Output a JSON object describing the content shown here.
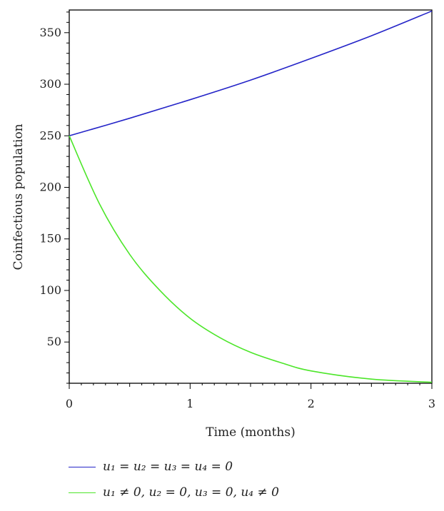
{
  "chart_data": {
    "type": "line",
    "title": "",
    "xlabel": "Time (months)",
    "ylabel": "Coinfectious population",
    "xlim": [
      0,
      3
    ],
    "ylim": [
      10,
      372
    ],
    "x_ticks": [
      0,
      1,
      2,
      3
    ],
    "y_ticks": [
      50,
      100,
      150,
      200,
      250,
      300,
      350
    ],
    "grid": false,
    "legend_position": "bottom",
    "series": [
      {
        "name": "u₁ = u₂ = u₃ = u₄ = 0",
        "color": "#2424c8",
        "x": [
          0,
          0.5,
          1,
          1.5,
          2,
          2.5,
          3
        ],
        "y": [
          250,
          267,
          285,
          304,
          325,
          347,
          371
        ]
      },
      {
        "name": "u₁ ≠ 0, u₂ = 0, u₃ = 0, u₄ ≠ 0",
        "color": "#4de62a",
        "x": [
          0,
          0.25,
          0.5,
          0.75,
          1,
          1.25,
          1.5,
          1.75,
          2,
          2.5,
          3
        ],
        "y": [
          250,
          184,
          135,
          100,
          73,
          54,
          40,
          30,
          22,
          14,
          11
        ]
      }
    ]
  }
}
